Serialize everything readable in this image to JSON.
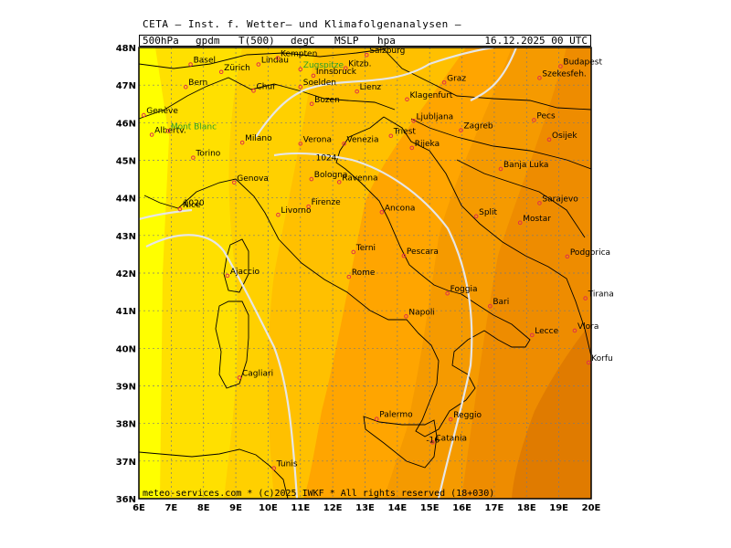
{
  "header": {
    "title": "CETA — Inst. f. Wetter— und Klimafolgenanalysen —",
    "level": "500hPa",
    "field1": "gpdm",
    "field2": "T(500)",
    "field3": "degC",
    "field4": "MSLP",
    "field5": "hpa",
    "datetime": "16.12.2025 00 UTC"
  },
  "footer": {
    "credit": "meteo-services.com * (c)2025 IWKF * All rights reserved (18+030)"
  },
  "axes": {
    "lon_labels": [
      "6E",
      "7E",
      "8E",
      "9E",
      "10E",
      "11E",
      "12E",
      "13E",
      "14E",
      "15E",
      "16E",
      "17E",
      "18E",
      "19E",
      "20E"
    ],
    "lat_labels": [
      "48N",
      "47N",
      "46N",
      "45N",
      "44N",
      "43N",
      "42N",
      "41N",
      "40N",
      "39N",
      "38N",
      "37N",
      "36N"
    ]
  },
  "colors": {
    "band_1": "#ffff00",
    "band_2": "#ffe000",
    "band_3": "#ffd000",
    "band_4": "#ffc000",
    "band_5": "#ffa500",
    "band_6": "#f59a00",
    "band_7": "#ee8c00",
    "band_8": "#e07b00",
    "isobar": "#e6e6e6",
    "border": "#000000",
    "gridline": "#7a7a7a"
  },
  "isobar_labels": [
    {
      "text": "1024",
      "lon": 11.8,
      "lat": 45.0
    },
    {
      "text": "1020",
      "lon": 7.7,
      "lat": 43.8
    },
    {
      "text": "-16",
      "lon": 15.1,
      "lat": 37.5
    }
  ],
  "cities": [
    {
      "name": "Basel",
      "lon": 7.6,
      "lat": 47.55
    },
    {
      "name": "Zürich",
      "lon": 8.55,
      "lat": 47.35
    },
    {
      "name": "Lindau",
      "lon": 9.7,
      "lat": 47.55
    },
    {
      "name": "Kempten",
      "lon": 10.3,
      "lat": 47.72
    },
    {
      "name": "Zugspitze",
      "lon": 11.0,
      "lat": 47.42,
      "green": true
    },
    {
      "name": "Kitzb.",
      "lon": 12.4,
      "lat": 47.45
    },
    {
      "name": "Salzburg",
      "lon": 13.05,
      "lat": 47.8
    },
    {
      "name": "Innsbruck",
      "lon": 11.4,
      "lat": 47.25
    },
    {
      "name": "Bern",
      "lon": 7.45,
      "lat": 46.95
    },
    {
      "name": "Chur",
      "lon": 9.55,
      "lat": 46.85
    },
    {
      "name": "Soelden",
      "lon": 11.0,
      "lat": 46.95
    },
    {
      "name": "Lienz",
      "lon": 12.75,
      "lat": 46.83
    },
    {
      "name": "Graz",
      "lon": 15.45,
      "lat": 47.07
    },
    {
      "name": "Bozen",
      "lon": 11.35,
      "lat": 46.5
    },
    {
      "name": "Klagenfurt",
      "lon": 14.3,
      "lat": 46.62
    },
    {
      "name": "Genève",
      "lon": 6.15,
      "lat": 46.2
    },
    {
      "name": "Albertv.",
      "lon": 6.4,
      "lat": 45.68
    },
    {
      "name": "Mont Blanc",
      "lon": 6.9,
      "lat": 45.78,
      "green": true
    },
    {
      "name": "Ljubljana",
      "lon": 14.5,
      "lat": 46.05
    },
    {
      "name": "Zagreb",
      "lon": 15.97,
      "lat": 45.8
    },
    {
      "name": "Triest",
      "lon": 13.8,
      "lat": 45.65
    },
    {
      "name": "Rijeka",
      "lon": 14.45,
      "lat": 45.33
    },
    {
      "name": "Pecs",
      "lon": 18.23,
      "lat": 46.07
    },
    {
      "name": "Osijek",
      "lon": 18.7,
      "lat": 45.55
    },
    {
      "name": "Budapest",
      "lon": 19.05,
      "lat": 47.5
    },
    {
      "name": "Szekesfeh.",
      "lon": 18.4,
      "lat": 47.19
    },
    {
      "name": "Milano",
      "lon": 9.2,
      "lat": 45.47
    },
    {
      "name": "Venezia",
      "lon": 12.35,
      "lat": 45.44
    },
    {
      "name": "Verona",
      "lon": 11.0,
      "lat": 45.44
    },
    {
      "name": "Torino",
      "lon": 7.68,
      "lat": 45.07
    },
    {
      "name": "Genova",
      "lon": 8.95,
      "lat": 44.41
    },
    {
      "name": "Bologna",
      "lon": 11.34,
      "lat": 44.5
    },
    {
      "name": "Ravenna",
      "lon": 12.2,
      "lat": 44.42
    },
    {
      "name": "Banja Luka",
      "lon": 17.2,
      "lat": 44.77
    },
    {
      "name": "Sarajevo",
      "lon": 18.4,
      "lat": 43.86
    },
    {
      "name": "Nice",
      "lon": 7.27,
      "lat": 43.7
    },
    {
      "name": "Firenze",
      "lon": 11.25,
      "lat": 43.77
    },
    {
      "name": "Livorno",
      "lon": 10.31,
      "lat": 43.55
    },
    {
      "name": "Ancona",
      "lon": 13.52,
      "lat": 43.62
    },
    {
      "name": "Split",
      "lon": 16.44,
      "lat": 43.51
    },
    {
      "name": "Mostar",
      "lon": 17.8,
      "lat": 43.34
    },
    {
      "name": "Podgorica",
      "lon": 19.26,
      "lat": 42.44
    },
    {
      "name": "Terni",
      "lon": 12.64,
      "lat": 42.56
    },
    {
      "name": "Pescara",
      "lon": 14.2,
      "lat": 42.46
    },
    {
      "name": "Ajaccio",
      "lon": 8.74,
      "lat": 41.93
    },
    {
      "name": "Rome",
      "lon": 12.5,
      "lat": 41.9
    },
    {
      "name": "Foggia",
      "lon": 15.55,
      "lat": 41.46
    },
    {
      "name": "Tirana",
      "lon": 19.82,
      "lat": 41.33
    },
    {
      "name": "Napoli",
      "lon": 14.27,
      "lat": 40.85
    },
    {
      "name": "Bari",
      "lon": 16.87,
      "lat": 41.12
    },
    {
      "name": "Lecce",
      "lon": 18.17,
      "lat": 40.35
    },
    {
      "name": "Vlora",
      "lon": 19.49,
      "lat": 40.47
    },
    {
      "name": "Korfu",
      "lon": 19.92,
      "lat": 39.62
    },
    {
      "name": "Cagliari",
      "lon": 9.11,
      "lat": 39.22
    },
    {
      "name": "Reggio",
      "lon": 15.65,
      "lat": 38.11
    },
    {
      "name": "Palermo",
      "lon": 13.36,
      "lat": 38.12
    },
    {
      "name": "Catania",
      "lon": 15.09,
      "lat": 37.5
    },
    {
      "name": "Tunis",
      "lon": 10.18,
      "lat": 36.81
    }
  ]
}
